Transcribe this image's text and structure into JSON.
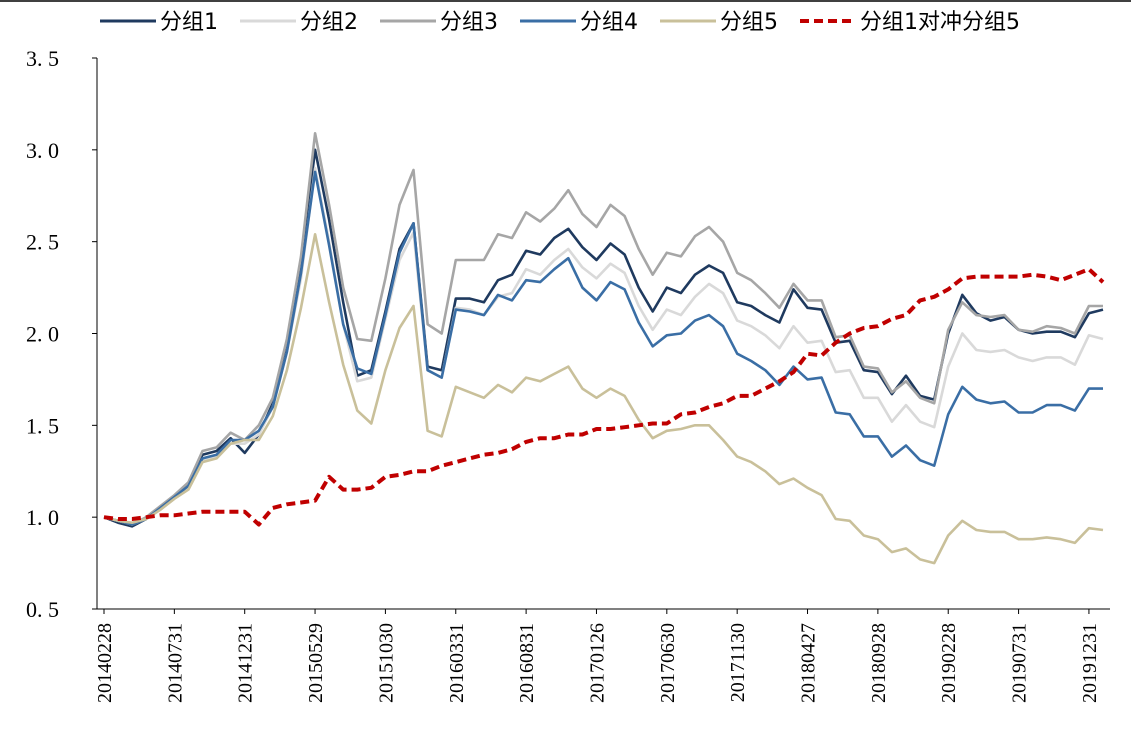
{
  "chart_data": {
    "type": "line",
    "title": "",
    "xlabel": "",
    "ylabel": "",
    "ylim": [
      0.5,
      3.5
    ],
    "yticks": [
      "0.5",
      "1.0",
      "1.5",
      "2.0",
      "2.5",
      "3.0",
      "3.5"
    ],
    "xticks": [
      "20140228",
      "20140731",
      "20141231",
      "20150529",
      "20151030",
      "20160331",
      "20160831",
      "20170126",
      "20170630",
      "20171130",
      "20180427",
      "20180928",
      "20190228",
      "20190731",
      "20191231"
    ],
    "legend_position": "top",
    "x_count": 72,
    "series": [
      {
        "name": "分组1",
        "color": "#1f3a5f",
        "style": "solid",
        "values": [
          1.0,
          0.97,
          0.95,
          0.99,
          1.05,
          1.11,
          1.18,
          1.34,
          1.36,
          1.43,
          1.35,
          1.45,
          1.62,
          1.94,
          2.38,
          3.0,
          2.62,
          2.17,
          1.77,
          1.8,
          2.12,
          2.46,
          2.6,
          1.82,
          1.8,
          2.19,
          2.19,
          2.17,
          2.29,
          2.32,
          2.45,
          2.43,
          2.52,
          2.57,
          2.47,
          2.4,
          2.49,
          2.43,
          2.25,
          2.12,
          2.25,
          2.22,
          2.32,
          2.37,
          2.33,
          2.17,
          2.15,
          2.1,
          2.06,
          2.24,
          2.14,
          2.13,
          1.95,
          1.96,
          1.8,
          1.79,
          1.67,
          1.77,
          1.66,
          1.64,
          2.0,
          2.21,
          2.11,
          2.07,
          2.09,
          2.02,
          2.0,
          2.01,
          2.01,
          1.98,
          2.11,
          2.13
        ]
      },
      {
        "name": "分组2",
        "color": "#d9d9d9",
        "style": "solid",
        "values": [
          1.0,
          0.98,
          0.96,
          0.99,
          1.05,
          1.11,
          1.17,
          1.31,
          1.33,
          1.4,
          1.4,
          1.45,
          1.6,
          1.9,
          2.3,
          2.9,
          2.5,
          2.05,
          1.74,
          1.76,
          2.08,
          2.4,
          2.55,
          1.8,
          1.76,
          2.14,
          2.13,
          2.1,
          2.2,
          2.22,
          2.35,
          2.32,
          2.4,
          2.46,
          2.36,
          2.3,
          2.38,
          2.33,
          2.15,
          2.02,
          2.13,
          2.1,
          2.2,
          2.27,
          2.22,
          2.07,
          2.04,
          1.99,
          1.92,
          2.04,
          1.95,
          1.96,
          1.79,
          1.8,
          1.65,
          1.65,
          1.52,
          1.61,
          1.52,
          1.49,
          1.82,
          2.0,
          1.91,
          1.9,
          1.91,
          1.87,
          1.85,
          1.87,
          1.87,
          1.83,
          1.99,
          1.97
        ]
      },
      {
        "name": "分组3",
        "color": "#a6a6a6",
        "style": "solid",
        "values": [
          1.0,
          0.98,
          0.96,
          1.0,
          1.06,
          1.12,
          1.19,
          1.36,
          1.38,
          1.46,
          1.42,
          1.5,
          1.65,
          1.97,
          2.42,
          3.09,
          2.7,
          2.25,
          1.97,
          1.96,
          2.3,
          2.7,
          2.89,
          2.05,
          2.0,
          2.4,
          2.4,
          2.4,
          2.54,
          2.52,
          2.66,
          2.61,
          2.68,
          2.78,
          2.65,
          2.58,
          2.7,
          2.64,
          2.46,
          2.32,
          2.44,
          2.42,
          2.53,
          2.58,
          2.5,
          2.33,
          2.29,
          2.22,
          2.14,
          2.27,
          2.18,
          2.18,
          1.98,
          1.99,
          1.82,
          1.81,
          1.68,
          1.74,
          1.65,
          1.62,
          2.02,
          2.17,
          2.1,
          2.09,
          2.1,
          2.02,
          2.01,
          2.04,
          2.03,
          2.0,
          2.15,
          2.15
        ]
      },
      {
        "name": "分组4",
        "color": "#3a6ea5",
        "style": "solid",
        "values": [
          1.0,
          0.98,
          0.96,
          0.99,
          1.05,
          1.11,
          1.17,
          1.32,
          1.34,
          1.42,
          1.42,
          1.47,
          1.6,
          1.9,
          2.33,
          2.88,
          2.48,
          2.05,
          1.81,
          1.78,
          2.1,
          2.44,
          2.6,
          1.8,
          1.76,
          2.13,
          2.12,
          2.1,
          2.21,
          2.18,
          2.29,
          2.28,
          2.35,
          2.41,
          2.25,
          2.18,
          2.28,
          2.24,
          2.06,
          1.93,
          1.99,
          2.0,
          2.07,
          2.1,
          2.04,
          1.89,
          1.85,
          1.8,
          1.72,
          1.82,
          1.75,
          1.76,
          1.57,
          1.56,
          1.44,
          1.44,
          1.33,
          1.39,
          1.31,
          1.28,
          1.56,
          1.71,
          1.64,
          1.62,
          1.63,
          1.57,
          1.57,
          1.61,
          1.61,
          1.58,
          1.7,
          1.7
        ]
      },
      {
        "name": "分组5",
        "color": "#c9c09a",
        "style": "solid",
        "values": [
          1.0,
          0.98,
          0.97,
          0.99,
          1.04,
          1.1,
          1.15,
          1.3,
          1.32,
          1.4,
          1.42,
          1.42,
          1.55,
          1.8,
          2.14,
          2.54,
          2.17,
          1.83,
          1.58,
          1.51,
          1.8,
          2.03,
          2.15,
          1.47,
          1.44,
          1.71,
          1.68,
          1.65,
          1.72,
          1.68,
          1.76,
          1.74,
          1.78,
          1.82,
          1.7,
          1.65,
          1.7,
          1.66,
          1.53,
          1.43,
          1.47,
          1.48,
          1.5,
          1.5,
          1.42,
          1.33,
          1.3,
          1.25,
          1.18,
          1.21,
          1.16,
          1.12,
          0.99,
          0.98,
          0.9,
          0.88,
          0.81,
          0.83,
          0.77,
          0.75,
          0.9,
          0.98,
          0.93,
          0.92,
          0.92,
          0.88,
          0.88,
          0.89,
          0.88,
          0.86,
          0.94,
          0.93
        ]
      },
      {
        "name": "分组1对冲分组5",
        "color": "#c00000",
        "style": "dashed",
        "values": [
          1.0,
          0.99,
          0.99,
          1.0,
          1.01,
          1.01,
          1.02,
          1.03,
          1.03,
          1.03,
          1.03,
          0.96,
          1.05,
          1.07,
          1.08,
          1.09,
          1.22,
          1.15,
          1.15,
          1.16,
          1.22,
          1.23,
          1.25,
          1.25,
          1.28,
          1.3,
          1.32,
          1.34,
          1.35,
          1.37,
          1.41,
          1.43,
          1.43,
          1.45,
          1.45,
          1.48,
          1.48,
          1.49,
          1.5,
          1.51,
          1.51,
          1.56,
          1.57,
          1.6,
          1.62,
          1.66,
          1.66,
          1.7,
          1.74,
          1.79,
          1.89,
          1.88,
          1.95,
          2.0,
          2.03,
          2.04,
          2.08,
          2.1,
          2.18,
          2.2,
          2.24,
          2.3,
          2.31,
          2.31,
          2.31,
          2.31,
          2.32,
          2.31,
          2.29,
          2.32,
          2.35,
          2.28
        ]
      }
    ]
  }
}
